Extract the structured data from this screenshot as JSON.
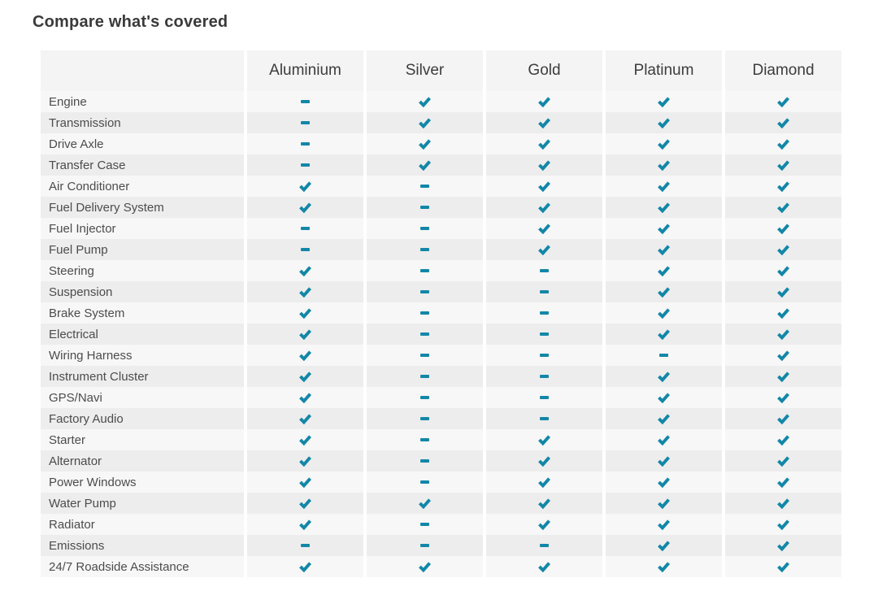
{
  "page": {
    "title": "Compare what's covered"
  },
  "table": {
    "columns": [
      "Aluminium",
      "Silver",
      "Gold",
      "Platinum",
      "Diamond"
    ],
    "accent_color": "#1287a8",
    "mark_meanings": {
      "check": "covered",
      "dash": "not covered"
    },
    "rows": [
      {
        "label": "Engine",
        "values": [
          "dash",
          "check",
          "check",
          "check",
          "check"
        ]
      },
      {
        "label": "Transmission",
        "values": [
          "dash",
          "check",
          "check",
          "check",
          "check"
        ]
      },
      {
        "label": "Drive Axle",
        "values": [
          "dash",
          "check",
          "check",
          "check",
          "check"
        ]
      },
      {
        "label": "Transfer Case",
        "values": [
          "dash",
          "check",
          "check",
          "check",
          "check"
        ]
      },
      {
        "label": "Air Conditioner",
        "values": [
          "check",
          "dash",
          "check",
          "check",
          "check"
        ]
      },
      {
        "label": "Fuel Delivery System",
        "values": [
          "check",
          "dash",
          "check",
          "check",
          "check"
        ]
      },
      {
        "label": "Fuel Injector",
        "values": [
          "dash",
          "dash",
          "check",
          "check",
          "check"
        ]
      },
      {
        "label": "Fuel Pump",
        "values": [
          "dash",
          "dash",
          "check",
          "check",
          "check"
        ]
      },
      {
        "label": "Steering",
        "values": [
          "check",
          "dash",
          "dash",
          "check",
          "check"
        ]
      },
      {
        "label": "Suspension",
        "values": [
          "check",
          "dash",
          "dash",
          "check",
          "check"
        ]
      },
      {
        "label": "Brake System",
        "values": [
          "check",
          "dash",
          "dash",
          "check",
          "check"
        ]
      },
      {
        "label": "Electrical",
        "values": [
          "check",
          "dash",
          "dash",
          "check",
          "check"
        ]
      },
      {
        "label": "Wiring Harness",
        "values": [
          "check",
          "dash",
          "dash",
          "dash",
          "check"
        ]
      },
      {
        "label": "Instrument Cluster",
        "values": [
          "check",
          "dash",
          "dash",
          "check",
          "check"
        ]
      },
      {
        "label": "GPS/Navi",
        "values": [
          "check",
          "dash",
          "dash",
          "check",
          "check"
        ]
      },
      {
        "label": "Factory Audio",
        "values": [
          "check",
          "dash",
          "dash",
          "check",
          "check"
        ]
      },
      {
        "label": "Starter",
        "values": [
          "check",
          "dash",
          "check",
          "check",
          "check"
        ]
      },
      {
        "label": "Alternator",
        "values": [
          "check",
          "dash",
          "check",
          "check",
          "check"
        ]
      },
      {
        "label": "Power Windows",
        "values": [
          "check",
          "dash",
          "check",
          "check",
          "check"
        ]
      },
      {
        "label": "Water Pump",
        "values": [
          "check",
          "check",
          "check",
          "check",
          "check"
        ]
      },
      {
        "label": "Radiator",
        "values": [
          "check",
          "dash",
          "check",
          "check",
          "check"
        ]
      },
      {
        "label": "Emissions",
        "values": [
          "dash",
          "dash",
          "dash",
          "check",
          "check"
        ]
      },
      {
        "label": "24/7 Roadside Assistance",
        "values": [
          "check",
          "check",
          "check",
          "check",
          "check"
        ]
      }
    ]
  }
}
